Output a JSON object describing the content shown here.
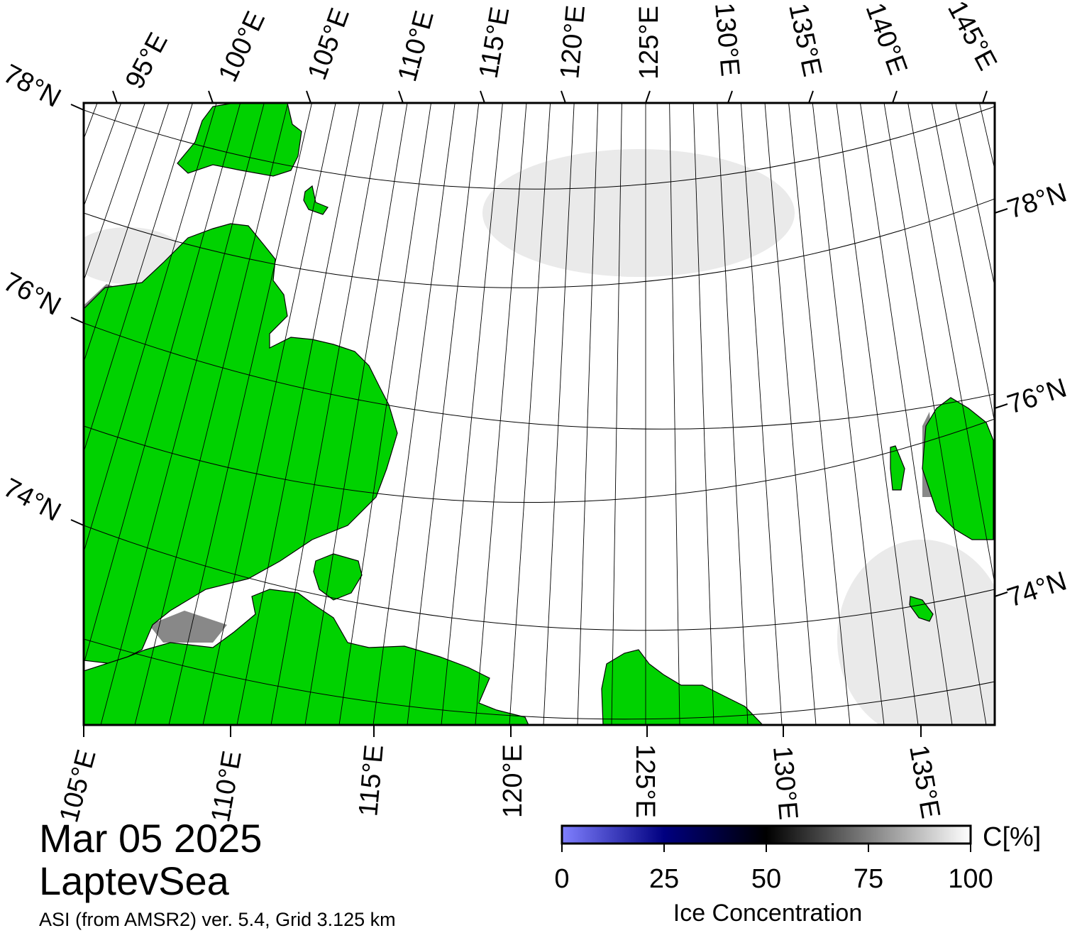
{
  "map": {
    "date": "Mar 05 2025",
    "region": "LaptevSea",
    "product": "ASI (from AMSR2) ver. 5.4,  Grid 3.125 km",
    "colors": {
      "land": "#00d200",
      "coast_mask": "#888888",
      "open_water": "#ffffff",
      "frame": "#000000"
    },
    "lon_labels_top": [
      "95°E",
      "100°E",
      "105°E",
      "110°E",
      "115°E",
      "120°E",
      "125°E",
      "130°E",
      "135°E",
      "140°E",
      "145°E"
    ],
    "lon_labels_bottom": [
      "105°E",
      "110°E",
      "115°E",
      "120°E",
      "125°E",
      "130°E",
      "135°E"
    ],
    "lat_labels_left": [
      "78°N",
      "76°N",
      "74°N"
    ],
    "lat_labels_right": [
      "78°N",
      "76°N",
      "74°N"
    ]
  },
  "colorbar": {
    "title": "Ice Concentration",
    "unit": "C[%]",
    "ticks": [
      "0",
      "25",
      "50",
      "75",
      "100"
    ],
    "range": [
      0,
      100
    ],
    "stops": [
      "#8080ff",
      "#000080",
      "#000000",
      "#808080",
      "#ffffff"
    ]
  }
}
